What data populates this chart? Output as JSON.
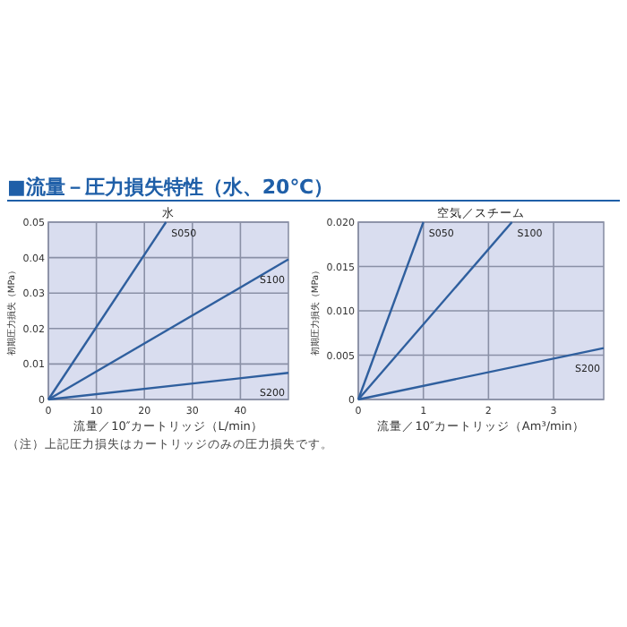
{
  "chart_data": [
    {
      "type": "line",
      "title": "水",
      "xlabel": "流量／10″カートリッジ（L/min）",
      "ylabel": "初期圧力損失（MPa）",
      "annotations": [
        "■流量－圧力損失特性（水、20℃）",
        "（注）上記圧力損失はカートリッジのみの圧力損失です。"
      ],
      "xlim": [
        0,
        50
      ],
      "xticks": [
        0,
        10,
        20,
        30,
        40
      ],
      "ylim": [
        0,
        0.05
      ],
      "yticks": [
        0,
        0.01,
        0.02,
        0.03,
        0.04,
        0.05
      ],
      "grid": true,
      "series": [
        {
          "name": "S050",
          "color": "#2f5f9e",
          "x": [
            0,
            24.5
          ],
          "values": [
            0,
            0.05
          ]
        },
        {
          "name": "S100",
          "color": "#2f5f9e",
          "x": [
            0,
            50
          ],
          "values": [
            0,
            0.0395
          ]
        },
        {
          "name": "S200",
          "color": "#2f5f9e",
          "x": [
            0,
            50
          ],
          "values": [
            0,
            0.0075
          ]
        }
      ]
    },
    {
      "type": "line",
      "title": "空気／スチーム",
      "xlabel": "流量／10″カートリッジ（Am³/min）",
      "ylabel": "初期圧力損失（MPa）",
      "xlim": [
        0,
        3.77
      ],
      "xticks": [
        0,
        1,
        2,
        3
      ],
      "ylim": [
        0,
        0.02
      ],
      "yticks": [
        0,
        0.005,
        {
          "value": 0.01,
          "label": "0.010"
        },
        0.015,
        {
          "value": 0.02,
          "label": "0.020"
        }
      ],
      "grid": true,
      "series": [
        {
          "name": "S050",
          "color": "#2f5f9e",
          "x": [
            0,
            1.0
          ],
          "values": [
            0,
            0.02
          ]
        },
        {
          "name": "S100",
          "color": "#2f5f9e",
          "x": [
            0,
            2.36
          ],
          "values": [
            0,
            0.02
          ]
        },
        {
          "name": "S200",
          "color": "#2f5f9e",
          "x": [
            0,
            3.77
          ],
          "values": [
            0,
            0.0058
          ]
        }
      ]
    }
  ]
}
